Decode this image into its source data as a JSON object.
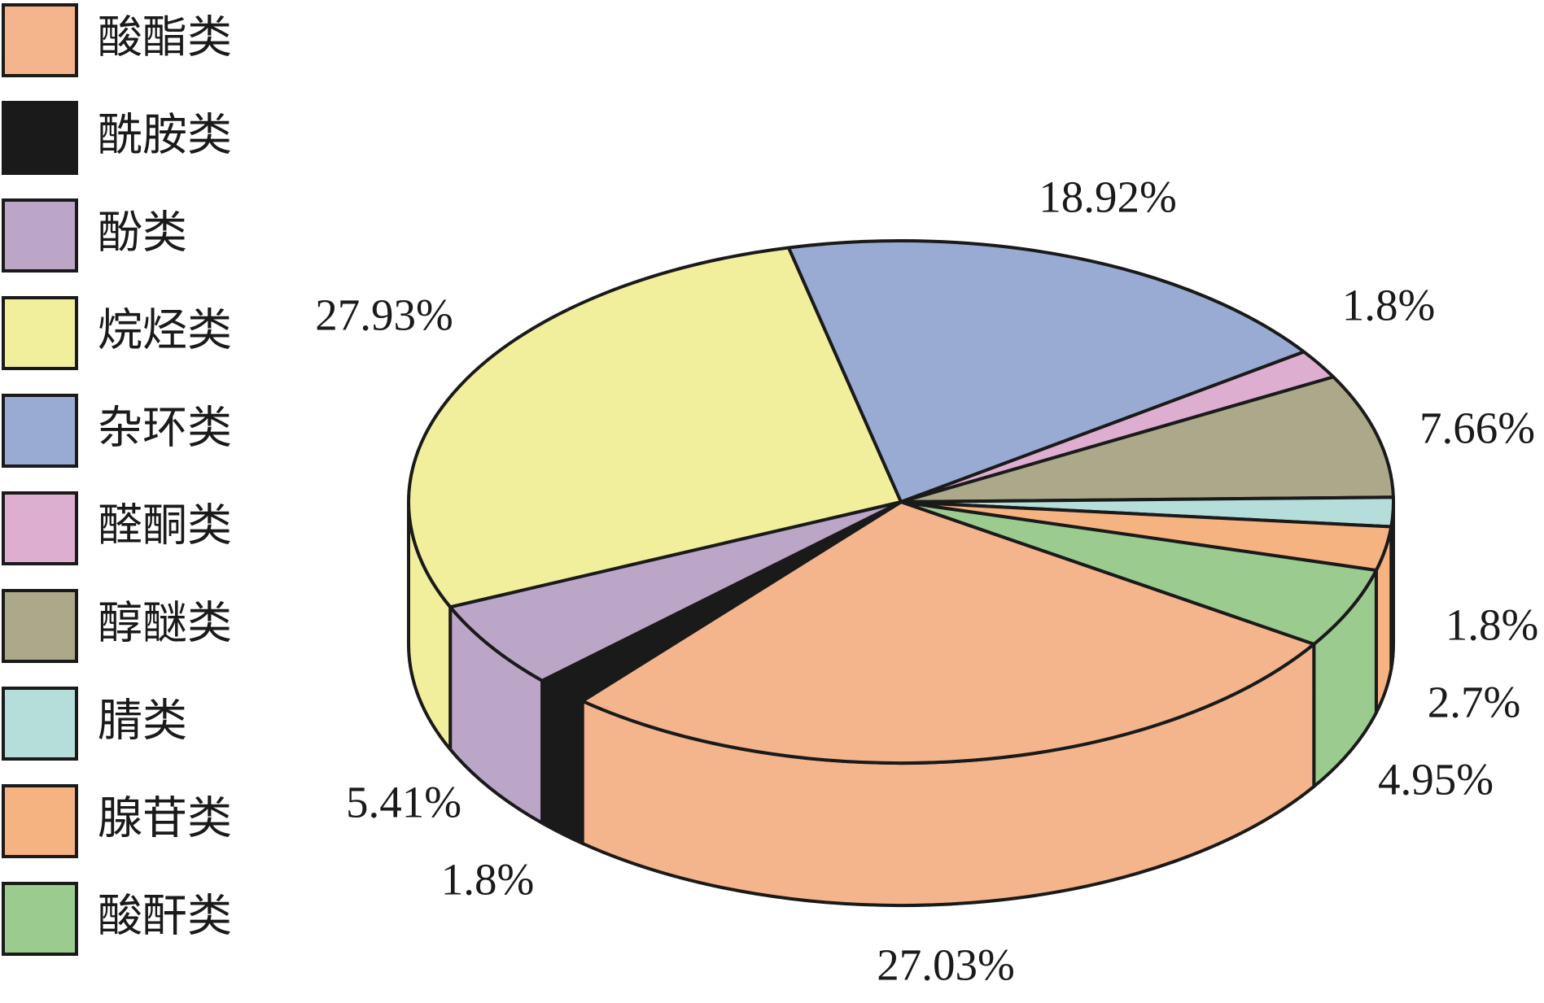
{
  "chart_data": {
    "type": "pie3d",
    "categories": [
      "酸酯类",
      "酰胺类",
      "酚类",
      "烷烃类",
      "杂环类",
      "醛酮类",
      "醇醚类",
      "腈类",
      "腺苷类",
      "酸酐类"
    ],
    "values": [
      27.03,
      1.8,
      5.41,
      27.93,
      18.92,
      1.8,
      7.66,
      1.8,
      2.7,
      4.95
    ],
    "value_labels": [
      "27.03%",
      "1.8%",
      "5.41%",
      "27.93%",
      "18.92%",
      "1.8%",
      "7.66%",
      "1.8%",
      "2.7%",
      "4.95%"
    ],
    "colors": [
      "#f4b58c",
      "#1a1a1a",
      "#bba6c8",
      "#f2ef9c",
      "#99aad3",
      "#deaed0",
      "#aba98a",
      "#b5ddd9",
      "#f6b382",
      "#9ccb90"
    ],
    "legend": "left"
  }
}
